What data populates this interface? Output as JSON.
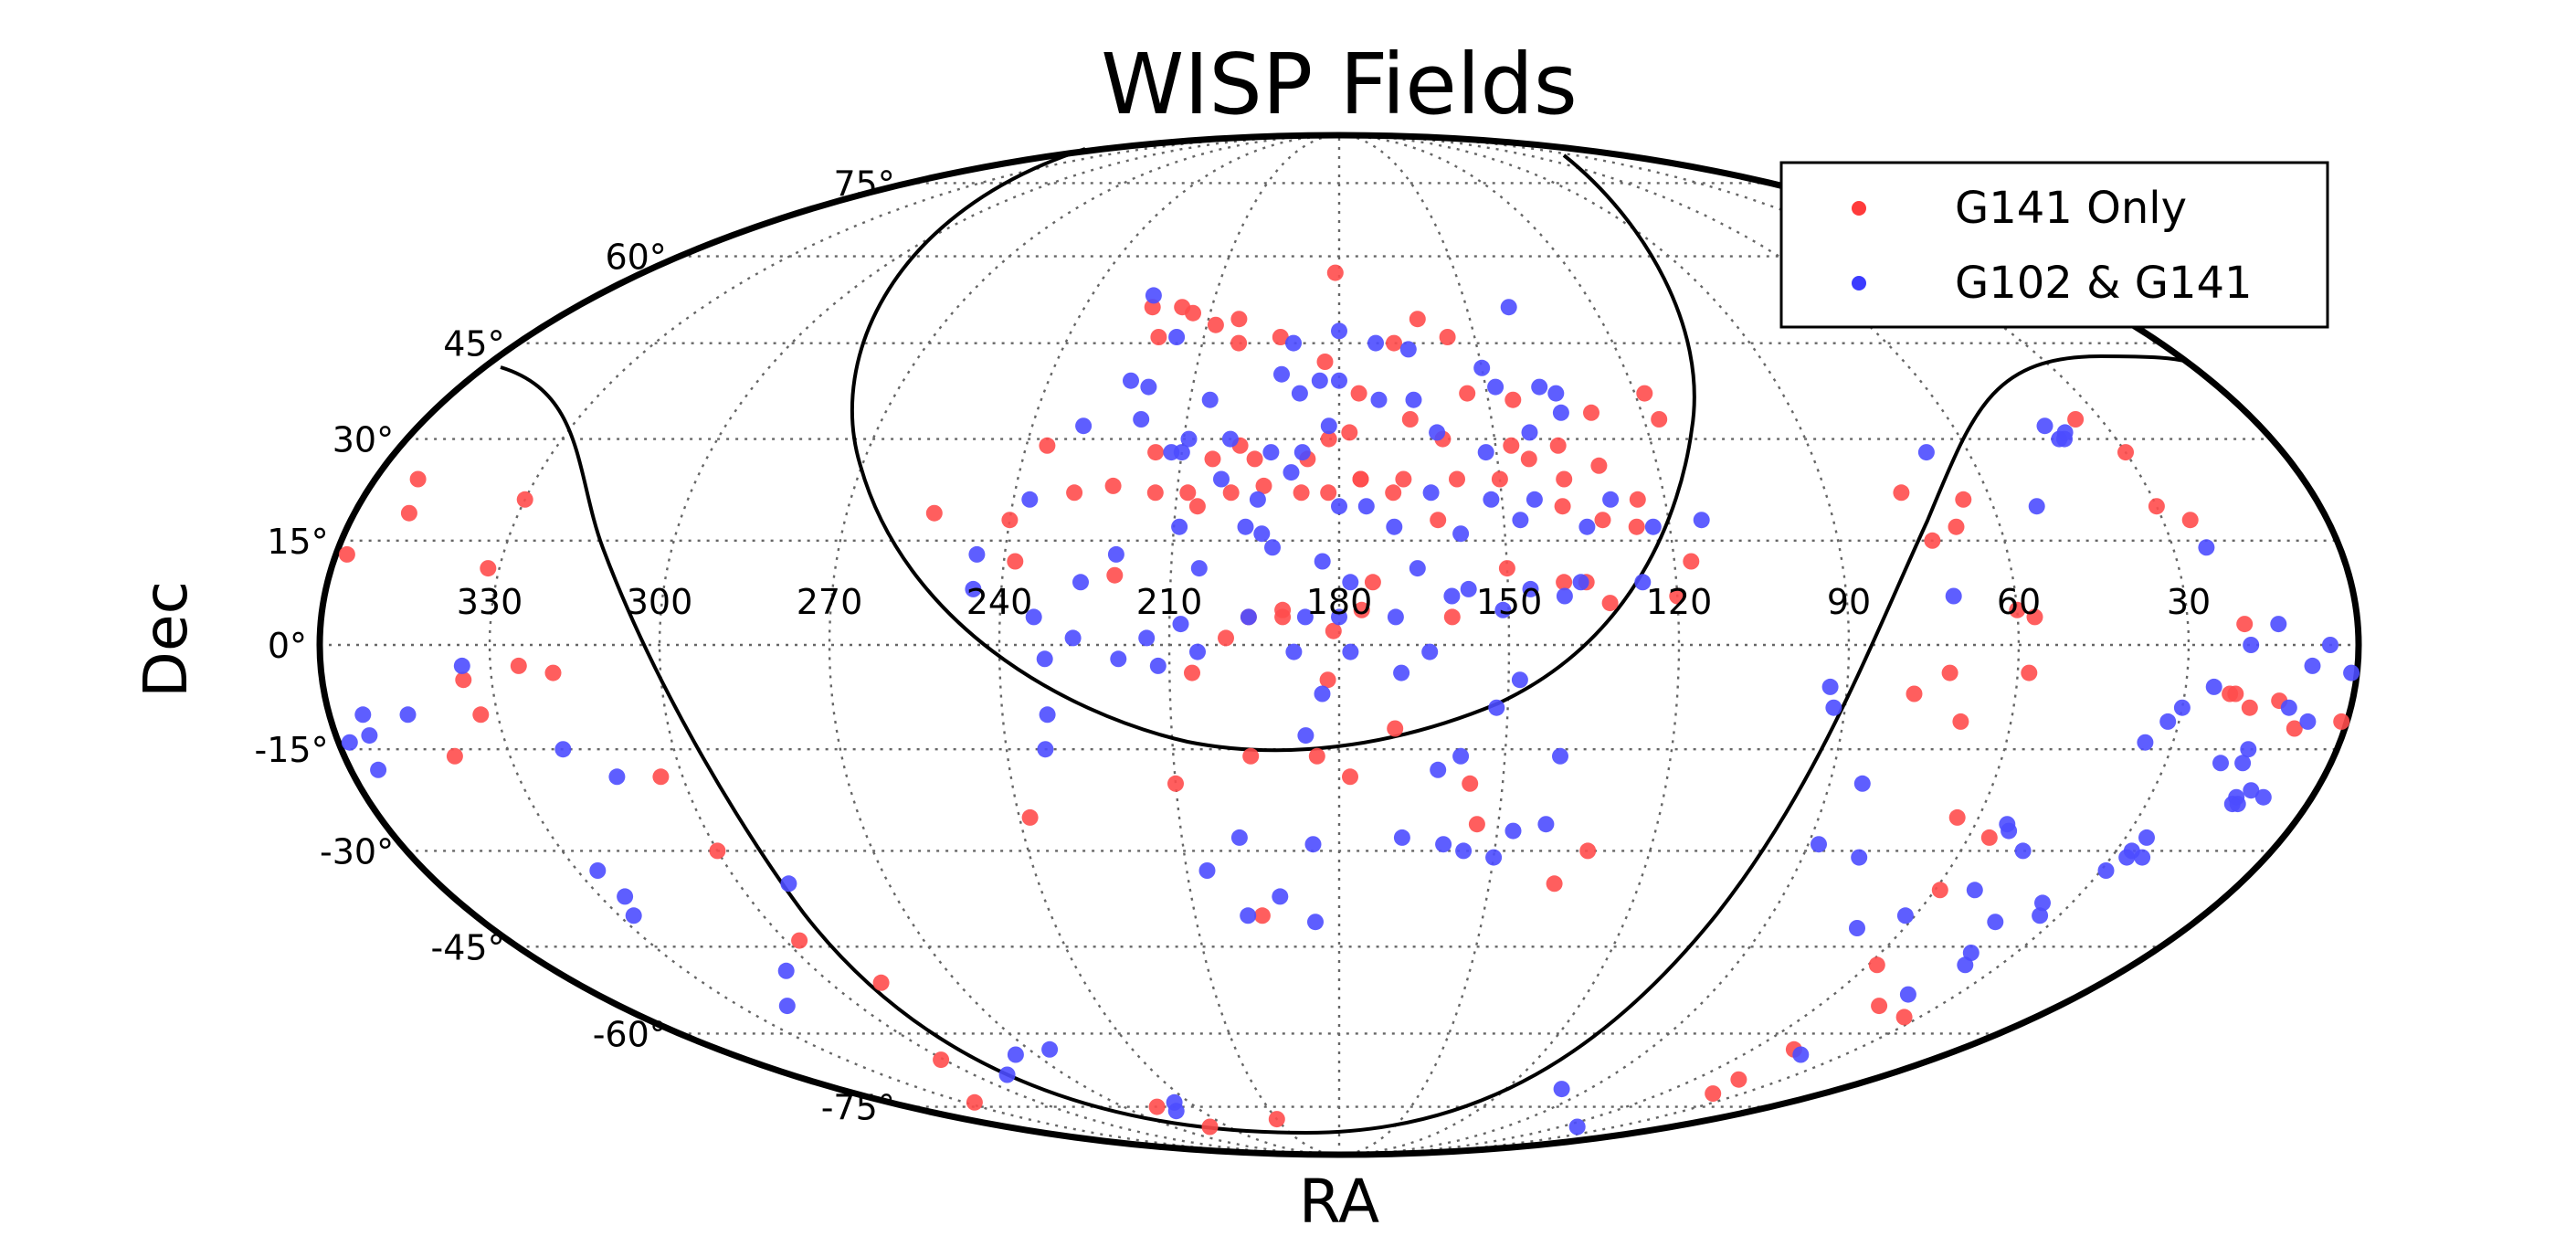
{
  "chart_data": {
    "type": "scatter",
    "projection": "mollweide",
    "title": "WISP Fields",
    "xlabel": "RA",
    "ylabel": "Dec",
    "ra_tick_labels": [
      "330",
      "300",
      "270",
      "240",
      "210",
      "180",
      "150",
      "120",
      "90",
      "60",
      "30"
    ],
    "dec_tick_labels": [
      "75°",
      "60°",
      "45°",
      "30°",
      "15°",
      "0°",
      "-15°",
      "-30°",
      "-45°",
      "-60°",
      "-75°"
    ],
    "grid": true,
    "legend": {
      "placement": "top-right"
    },
    "colors": {
      "g141": "#ff4d4d",
      "both": "#4d4dff",
      "frame": "#000000"
    },
    "series": [
      {
        "name": "G141 Only",
        "color": "#ff4d4d",
        "points": [
          [
            224,
            51
          ],
          [
            217,
            51
          ],
          [
            220,
            46
          ],
          [
            214,
            50
          ],
          [
            203,
            49
          ],
          [
            208,
            48
          ],
          [
            202,
            45
          ],
          [
            181,
            57
          ],
          [
            193,
            46
          ],
          [
            183,
            42
          ],
          [
            168,
            45
          ],
          [
            162,
            49
          ],
          [
            156,
            46
          ],
          [
            176,
            37
          ],
          [
            154,
            37
          ],
          [
            145,
            36
          ],
          [
            130,
            34
          ],
          [
            118,
            37
          ],
          [
            117,
            33
          ],
          [
            236,
            29
          ],
          [
            215,
            28
          ],
          [
            204,
            27
          ],
          [
            199,
            29
          ],
          [
            196,
            27
          ],
          [
            186,
            27
          ],
          [
            182,
            30
          ],
          [
            178,
            31
          ],
          [
            166,
            33
          ],
          [
            160,
            30
          ],
          [
            147,
            29
          ],
          [
            138,
            29
          ],
          [
            131,
            26
          ],
          [
            176,
            24
          ],
          [
            168,
            24
          ],
          [
            158,
            24
          ],
          [
            150,
            24
          ],
          [
            144,
            27
          ],
          [
            138,
            24
          ],
          [
            125,
            21
          ],
          [
            240,
            18
          ],
          [
            229,
            22
          ],
          [
            222,
            23
          ],
          [
            214,
            22
          ],
          [
            208,
            22
          ],
          [
            206,
            20
          ],
          [
            200,
            22
          ],
          [
            194,
            23
          ],
          [
            187,
            22
          ],
          [
            182,
            22
          ],
          [
            176,
            24
          ],
          [
            170,
            22
          ],
          [
            162,
            18
          ],
          [
            139,
            20
          ],
          [
            132,
            18
          ],
          [
            126,
            17
          ],
          [
            117,
            12
          ],
          [
            254,
            19
          ],
          [
            238,
            12
          ],
          [
            220,
            10
          ],
          [
            190,
            5
          ],
          [
            174,
            9
          ],
          [
            150,
            11
          ],
          [
            140,
            9
          ],
          [
            136,
            9
          ],
          [
            132,
            6
          ],
          [
            120,
            7
          ],
          [
            200,
            1
          ],
          [
            196,
            4
          ],
          [
            190,
            4
          ],
          [
            181,
            2
          ],
          [
            176,
            5
          ],
          [
            160,
            4
          ],
          [
            206,
            -4
          ],
          [
            182,
            -5
          ],
          [
            170,
            -12
          ],
          [
            196,
            -16
          ],
          [
            184,
            -16
          ],
          [
            178,
            -19
          ],
          [
            154,
            -26
          ],
          [
            132,
            -30
          ],
          [
            137,
            -35
          ],
          [
            210,
            -20
          ],
          [
            156,
            -20
          ],
          [
            238,
            -25
          ],
          [
            196,
            -40
          ],
          [
            358,
            13
          ],
          [
            352,
            24
          ],
          [
            350,
            19
          ],
          [
            330,
            21
          ],
          [
            332,
            11
          ],
          [
            340,
            -16
          ],
          [
            319,
            -4
          ],
          [
            304,
            -19
          ],
          [
            300,
            -30
          ],
          [
            297,
            -44
          ],
          [
            288,
            -51
          ],
          [
            256,
            -75
          ],
          [
            250,
            -80
          ],
          [
            210,
            -78
          ],
          [
            78,
            -7
          ],
          [
            72,
            -4
          ],
          [
            69,
            -11
          ],
          [
            73,
            15
          ],
          [
            68,
            17
          ],
          [
            65,
            21
          ],
          [
            76,
            22
          ],
          [
            60,
            5
          ],
          [
            57,
            4
          ],
          [
            58,
            -4
          ],
          [
            64,
            -25
          ],
          [
            56,
            -28
          ],
          [
            59,
            -36
          ],
          [
            58,
            -48
          ],
          [
            45,
            -55
          ],
          [
            34,
            -57
          ],
          [
            48,
            -63
          ],
          [
            45,
            -69
          ],
          [
            41,
            -72
          ],
          [
            21,
            -7
          ],
          [
            22,
            -7
          ],
          [
            18,
            -9
          ],
          [
            13,
            -8
          ],
          [
            35,
            33
          ],
          [
            30,
            28
          ],
          [
            30,
            20
          ],
          [
            25,
            18
          ],
          [
            20,
            3
          ],
          [
            9,
            -12
          ],
          [
            1,
            -11
          ],
          [
            335,
            -5
          ],
          [
            325,
            -3
          ],
          [
            333,
            -10
          ],
          [
            301,
            -65
          ],
          [
            326,
            -74
          ]
        ]
      },
      {
        "name": "G102 & G141",
        "color": "#4d4dff",
        "points": [
          [
            225,
            53
          ],
          [
            216,
            46
          ],
          [
            190,
            45
          ],
          [
            180,
            47
          ],
          [
            172,
            45
          ],
          [
            165,
            44
          ],
          [
            150,
            41
          ],
          [
            139,
            38
          ],
          [
            140,
            51
          ],
          [
            223,
            39
          ],
          [
            219,
            38
          ],
          [
            206,
            36
          ],
          [
            192,
            40
          ],
          [
            188,
            37
          ],
          [
            184,
            39
          ],
          [
            180,
            39
          ],
          [
            172,
            36
          ],
          [
            165,
            36
          ],
          [
            148,
            38
          ],
          [
            136,
            37
          ],
          [
            230,
            32
          ],
          [
            219,
            33
          ],
          [
            212,
            28
          ],
          [
            209,
            30
          ],
          [
            201,
            30
          ],
          [
            193,
            28
          ],
          [
            187,
            28
          ],
          [
            182,
            32
          ],
          [
            161,
            31
          ],
          [
            152,
            28
          ],
          [
            143,
            31
          ],
          [
            136,
            34
          ],
          [
            210,
            28
          ],
          [
            202,
            24
          ],
          [
            195,
            21
          ],
          [
            189,
            25
          ],
          [
            180,
            20
          ],
          [
            175,
            20
          ],
          [
            163,
            22
          ],
          [
            152,
            21
          ],
          [
            144,
            21
          ],
          [
            130,
            21
          ],
          [
            209,
            17
          ],
          [
            197,
            17
          ],
          [
            194,
            16
          ],
          [
            170,
            17
          ],
          [
            158,
            16
          ],
          [
            147,
            18
          ],
          [
            135,
            17
          ],
          [
            123,
            17
          ],
          [
            114,
            18
          ],
          [
            237,
            21
          ],
          [
            245,
            13
          ],
          [
            226,
            9
          ],
          [
            220,
            13
          ],
          [
            205,
            11
          ],
          [
            192,
            14
          ],
          [
            183,
            12
          ],
          [
            178,
            9
          ],
          [
            166,
            11
          ],
          [
            157,
            8
          ],
          [
            146,
            8
          ],
          [
            137,
            9
          ],
          [
            126,
            9
          ],
          [
            245,
            8
          ],
          [
            234,
            4
          ],
          [
            227,
            1
          ],
          [
            214,
            1
          ],
          [
            208,
            3
          ],
          [
            196,
            4
          ],
          [
            186,
            4
          ],
          [
            180,
            4
          ],
          [
            170,
            4
          ],
          [
            160,
            7
          ],
          [
            151,
            5
          ],
          [
            140,
            7
          ],
          [
            232,
            -2
          ],
          [
            219,
            -2
          ],
          [
            212,
            -3
          ],
          [
            205,
            -1
          ],
          [
            188,
            -1
          ],
          [
            178,
            -1
          ],
          [
            169,
            -4
          ],
          [
            164,
            -1
          ],
          [
            148,
            -5
          ],
          [
            152,
            -9
          ],
          [
            232,
            -10
          ],
          [
            233,
            -15
          ],
          [
            186,
            -13
          ],
          [
            183,
            -7
          ],
          [
            158,
            -16
          ],
          [
            140,
            -16
          ],
          [
            162,
            -18
          ],
          [
            199,
            -28
          ],
          [
            185,
            -29
          ],
          [
            168,
            -28
          ],
          [
            160,
            -29
          ],
          [
            192,
            -37
          ],
          [
            156,
            -30
          ],
          [
            147,
            -27
          ],
          [
            141,
            -26
          ],
          [
            206,
            -33
          ],
          [
            199,
            -40
          ],
          [
            185,
            -41
          ],
          [
            150,
            -31
          ],
          [
            354,
            -13
          ],
          [
            358,
            -14
          ],
          [
            355,
            -18
          ],
          [
            354,
            -10
          ],
          [
            346,
            -10
          ],
          [
            335,
            -3
          ],
          [
            320,
            -15
          ],
          [
            312,
            -19
          ],
          [
            290,
            -35
          ],
          [
            276,
            -64
          ],
          [
            251,
            -76
          ],
          [
            246,
            -74
          ],
          [
            264,
            -63
          ],
          [
            326,
            -33
          ],
          [
            327,
            -40
          ],
          [
            325,
            -37
          ],
          [
            318,
            -55
          ],
          [
            307,
            -49
          ],
          [
            289,
            -68
          ],
          [
            93,
            -6
          ],
          [
            92,
            -9
          ],
          [
            88,
            -29
          ],
          [
            84,
            -20
          ],
          [
            79,
            -31
          ],
          [
            70,
            -42
          ],
          [
            62,
            -40
          ],
          [
            54,
            -26
          ],
          [
            53,
            -27
          ],
          [
            48,
            -30
          ],
          [
            52,
            -36
          ],
          [
            42,
            -41
          ],
          [
            40,
            -46
          ],
          [
            38,
            -48
          ],
          [
            42,
            -53
          ],
          [
            43,
            -64
          ],
          [
            16,
            -15
          ],
          [
            11,
            -9
          ],
          [
            7,
            -11
          ],
          [
            13,
            -23
          ],
          [
            14,
            -22
          ],
          [
            14,
            -23
          ],
          [
            9,
            -22
          ],
          [
            12,
            -21
          ],
          [
            16,
            -17
          ],
          [
            20,
            -17
          ],
          [
            26,
            -28
          ],
          [
            27,
            -31
          ],
          [
            27,
            -30
          ],
          [
            24,
            -31
          ],
          [
            29,
            -33
          ],
          [
            36,
            -38
          ],
          [
            34,
            -40
          ],
          [
            71,
            7
          ],
          [
            68,
            28
          ],
          [
            41,
            30
          ],
          [
            40,
            30
          ],
          [
            39,
            31
          ],
          [
            42,
            32
          ],
          [
            52,
            20
          ],
          [
            19,
            0
          ],
          [
            14,
            3
          ],
          [
            5,
            0
          ],
          [
            8,
            -3
          ],
          [
            1,
            -4
          ],
          [
            25,
            -6
          ],
          [
            30,
            -9
          ],
          [
            32,
            -11
          ],
          [
            35,
            -14
          ],
          [
            24,
            14
          ],
          [
            51,
            -80
          ],
          [
            100,
            -71
          ]
        ]
      }
    ]
  }
}
